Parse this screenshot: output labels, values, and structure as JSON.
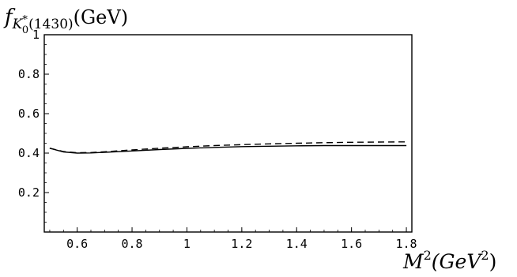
{
  "chart_data": {
    "type": "line",
    "ylabel": {
      "main": "f",
      "sub": "K",
      "subsup": "*",
      "subsub": "0",
      "subrest": "(1430)",
      "unit": "(GeV)"
    },
    "xlabel": {
      "main": "M",
      "sup": "2",
      "unit_open": "(GeV",
      "unit_sup": "2",
      "unit_close": ")"
    },
    "xlim": [
      0.48,
      1.82
    ],
    "ylim": [
      0,
      1
    ],
    "xticks": [
      0.6,
      0.8,
      1.0,
      1.2,
      1.4,
      1.6,
      1.8
    ],
    "xtick_labels": [
      "0.6",
      "0.8",
      "1",
      "1.2",
      "1.4",
      "1.6",
      "1.8"
    ],
    "yticks": [
      0.2,
      0.4,
      0.6,
      0.8,
      1.0
    ],
    "ytick_labels": [
      "0.2",
      "0.4",
      "0.6",
      "0.8",
      "1"
    ],
    "grid": false,
    "series": [
      {
        "style": "solid",
        "x": [
          0.5,
          0.55,
          0.6,
          0.65,
          0.7,
          0.8,
          0.9,
          1.0,
          1.1,
          1.2,
          1.3,
          1.4,
          1.5,
          1.6,
          1.7,
          1.8
        ],
        "y": [
          0.425,
          0.406,
          0.4,
          0.401,
          0.404,
          0.411,
          0.418,
          0.424,
          0.429,
          0.433,
          0.435,
          0.437,
          0.438,
          0.438,
          0.438,
          0.438
        ]
      },
      {
        "style": "dashed",
        "x": [
          0.5,
          0.55,
          0.6,
          0.65,
          0.7,
          0.8,
          0.9,
          1.0,
          1.1,
          1.2,
          1.3,
          1.4,
          1.5,
          1.6,
          1.7,
          1.8
        ],
        "y": [
          0.425,
          0.408,
          0.402,
          0.403,
          0.407,
          0.416,
          0.425,
          0.432,
          0.438,
          0.443,
          0.447,
          0.45,
          0.453,
          0.455,
          0.456,
          0.457
        ]
      }
    ]
  }
}
